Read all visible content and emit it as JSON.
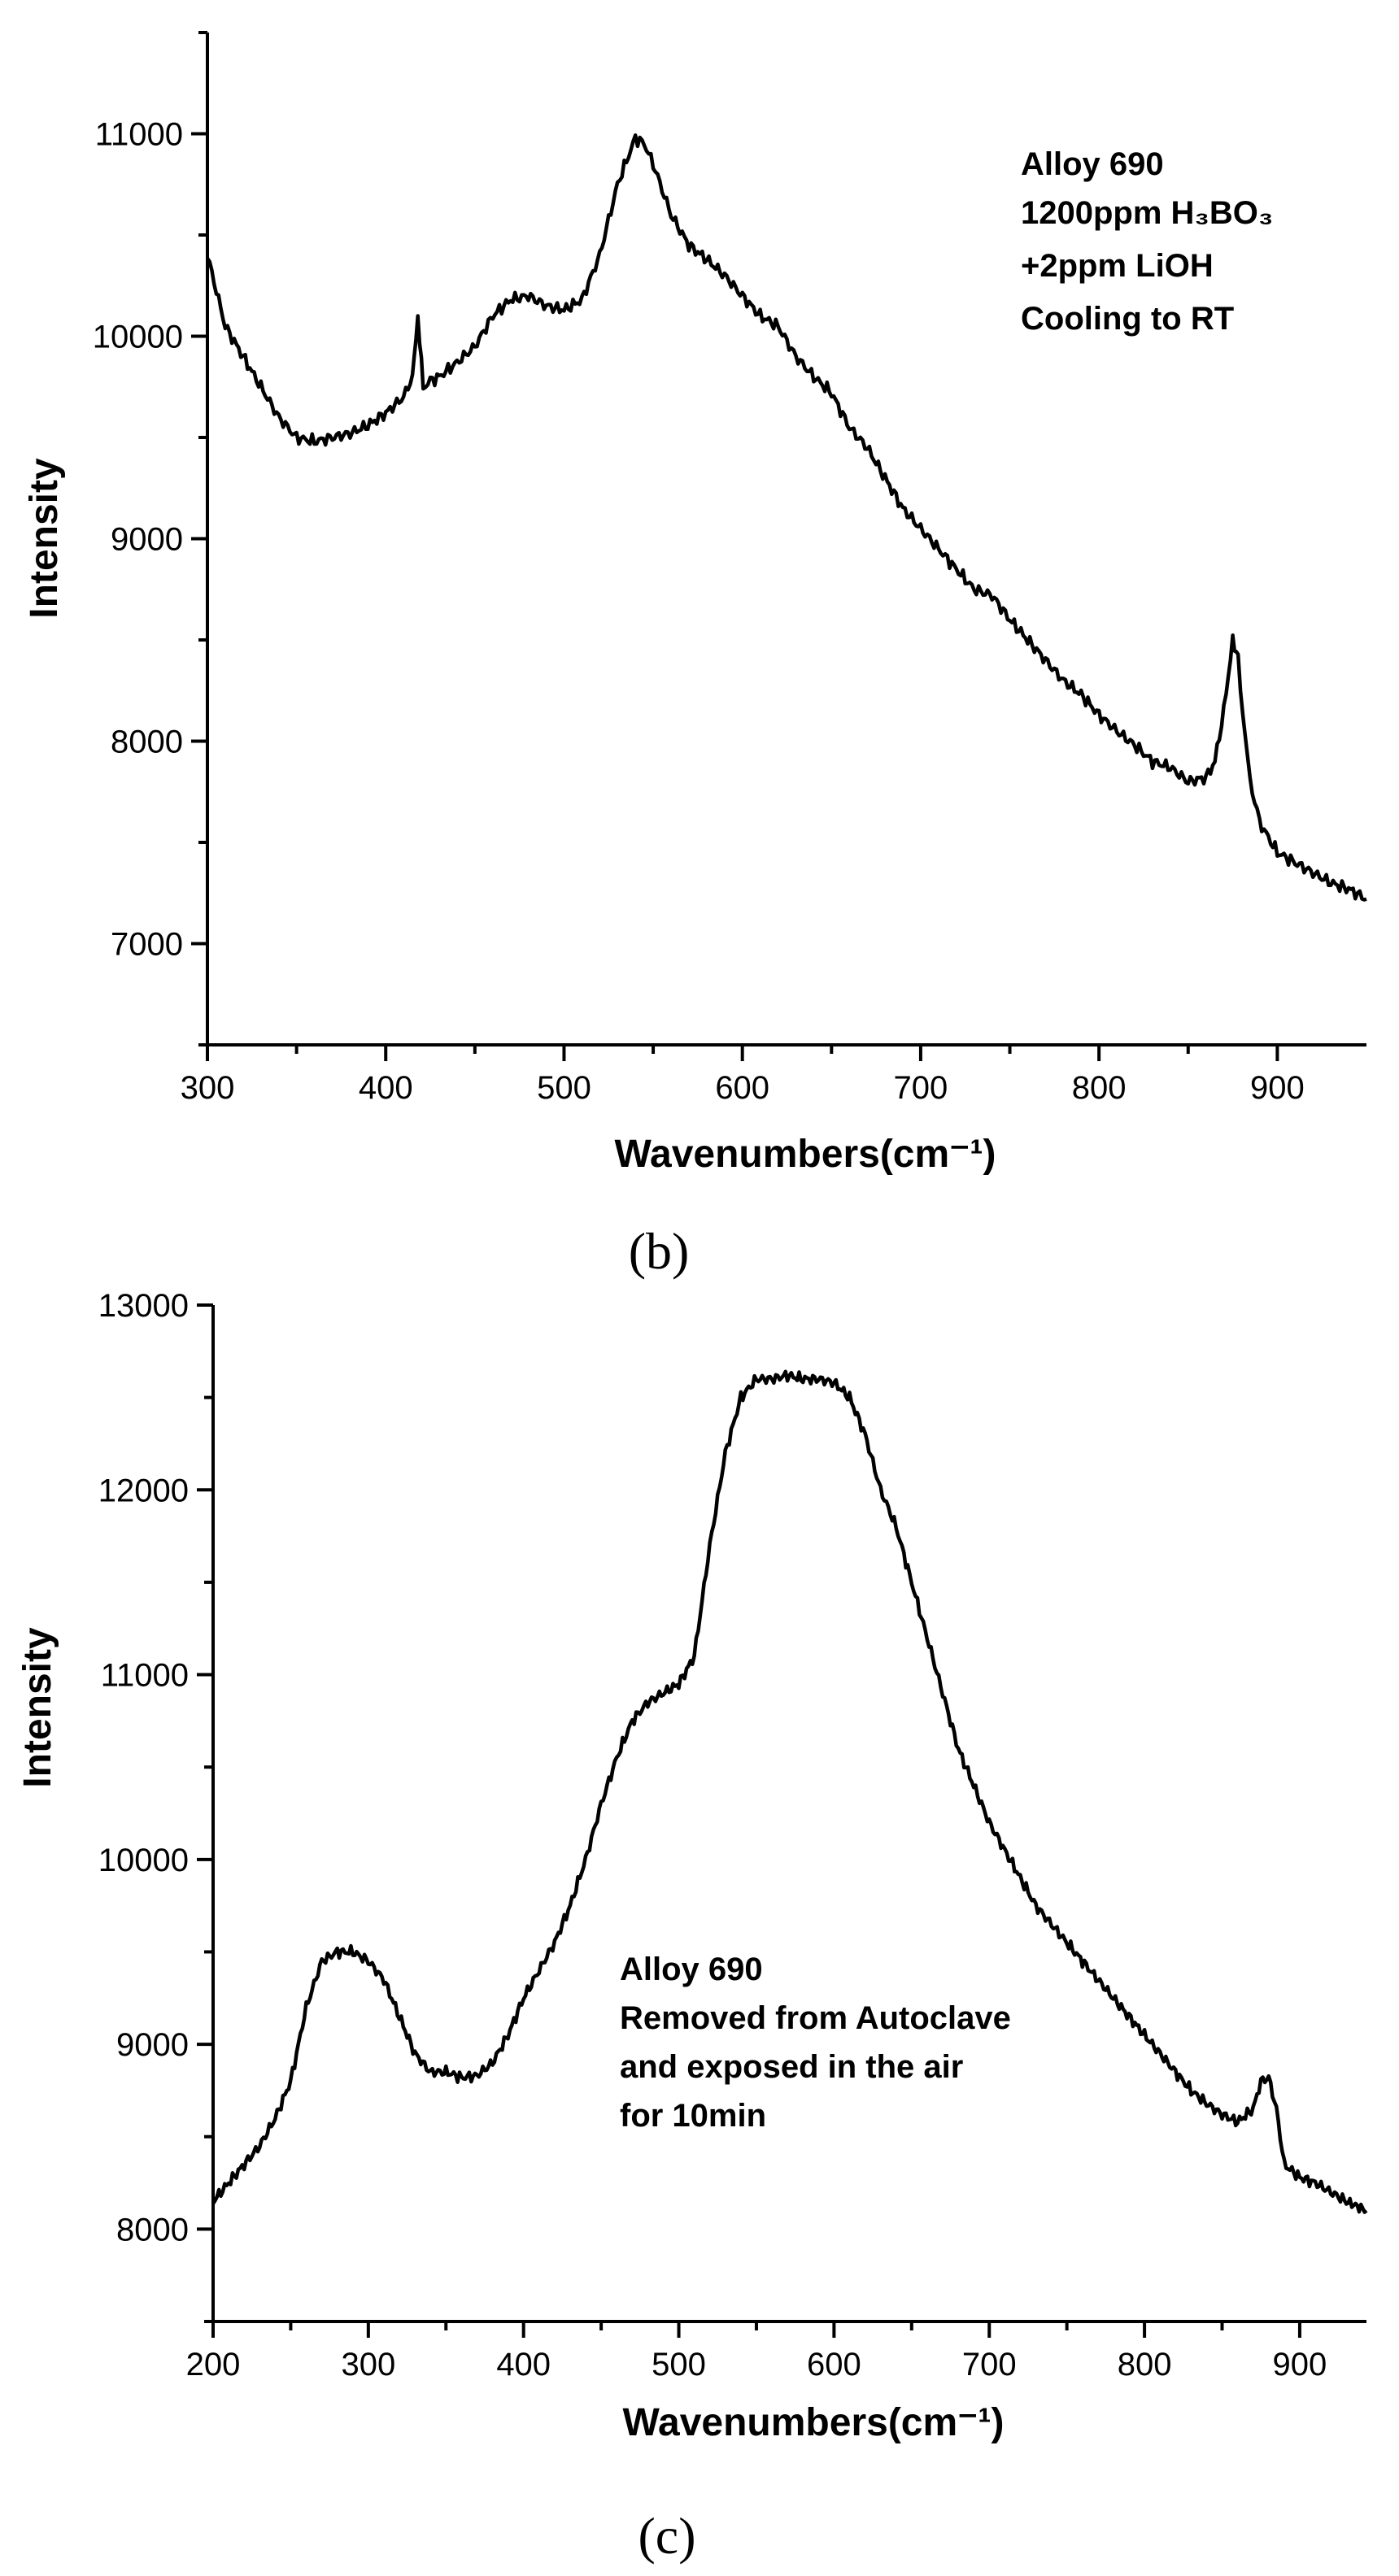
{
  "chart_data": [
    {
      "type": "line",
      "panel_label": "(b)",
      "xlabel": "Wavenumbers(cm⁻¹)",
      "ylabel": "Intensity",
      "xlim": [
        300,
        950
      ],
      "ylim": [
        6500,
        11500
      ],
      "xticks": [
        "300",
        "400",
        "500",
        "600",
        "700",
        "800",
        "900"
      ],
      "yticks": [
        "7000",
        "8000",
        "9000",
        "10000",
        "11000"
      ],
      "annotation": [
        "Alloy 690",
        "1200ppm H₃BO₃",
        "+2ppm LiOH",
        "Cooling to RT"
      ],
      "series": [
        {
          "x": [
            300,
            310,
            320,
            330,
            340,
            350,
            360,
            370,
            380,
            390,
            400,
            410,
            415,
            418,
            421,
            425,
            430,
            440,
            450,
            460,
            470,
            480,
            490,
            500,
            510,
            520,
            530,
            540,
            545,
            550,
            560,
            570,
            580,
            590,
            600,
            610,
            620,
            630,
            640,
            650,
            660,
            670,
            680,
            690,
            700,
            710,
            720,
            730,
            740,
            750,
            760,
            770,
            780,
            790,
            800,
            810,
            820,
            830,
            840,
            850,
            860,
            865,
            870,
            875,
            878,
            882,
            886,
            890,
            900,
            910,
            920,
            930,
            940,
            950
          ],
          "y": [
            10400,
            10050,
            9900,
            9750,
            9600,
            9500,
            9480,
            9500,
            9520,
            9560,
            9620,
            9700,
            9800,
            10100,
            9750,
            9780,
            9800,
            9870,
            9950,
            10100,
            10180,
            10200,
            10150,
            10130,
            10180,
            10400,
            10750,
            10980,
            10950,
            10850,
            10600,
            10450,
            10380,
            10300,
            10200,
            10100,
            10050,
            9900,
            9800,
            9720,
            9550,
            9450,
            9300,
            9150,
            9050,
            8950,
            8850,
            8750,
            8720,
            8600,
            8500,
            8400,
            8300,
            8230,
            8130,
            8050,
            7980,
            7900,
            7870,
            7800,
            7820,
            7900,
            8150,
            8500,
            8420,
            8000,
            7750,
            7600,
            7450,
            7400,
            7350,
            7300,
            7270,
            7220
          ]
        }
      ]
    },
    {
      "type": "line",
      "panel_label": "(c)",
      "xlabel": "Wavenumbers(cm⁻¹)",
      "ylabel": "Intensity",
      "xlim": [
        200,
        943
      ],
      "ylim": [
        7500,
        13000
      ],
      "xticks": [
        "200",
        "300",
        "400",
        "500",
        "600",
        "700",
        "800",
        "900"
      ],
      "yticks": [
        "8000",
        "9000",
        "10000",
        "11000",
        "12000",
        "13000"
      ],
      "annotation": [
        "Alloy 690",
        "Removed from Autoclave",
        "and exposed in the air",
        "for 10min"
      ],
      "series": [
        {
          "x": [
            200,
            210,
            220,
            230,
            240,
            250,
            260,
            270,
            280,
            290,
            300,
            310,
            320,
            330,
            340,
            350,
            360,
            370,
            380,
            390,
            400,
            410,
            420,
            430,
            440,
            450,
            460,
            470,
            480,
            490,
            500,
            510,
            515,
            520,
            530,
            540,
            550,
            560,
            570,
            580,
            590,
            600,
            610,
            620,
            630,
            640,
            650,
            660,
            670,
            680,
            690,
            700,
            710,
            720,
            730,
            740,
            750,
            760,
            770,
            780,
            790,
            800,
            810,
            820,
            830,
            840,
            850,
            860,
            870,
            875,
            880,
            885,
            890,
            900,
            910,
            920,
            930,
            943
          ],
          "y": [
            8150,
            8250,
            8350,
            8450,
            8600,
            8800,
            9200,
            9450,
            9500,
            9500,
            9450,
            9350,
            9150,
            8950,
            8850,
            8850,
            8820,
            8830,
            8900,
            9050,
            9250,
            9400,
            9550,
            9750,
            10000,
            10300,
            10550,
            10750,
            10850,
            10900,
            10950,
            11100,
            11400,
            11700,
            12200,
            12500,
            12600,
            12600,
            12620,
            12600,
            12600,
            12580,
            12500,
            12300,
            12000,
            11800,
            11500,
            11200,
            10900,
            10600,
            10400,
            10200,
            10050,
            9900,
            9750,
            9650,
            9550,
            9450,
            9350,
            9250,
            9150,
            9050,
            8950,
            8850,
            8750,
            8680,
            8620,
            8580,
            8650,
            8800,
            8820,
            8650,
            8350,
            8280,
            8250,
            8200,
            8150,
            8100
          ]
        }
      ]
    }
  ]
}
